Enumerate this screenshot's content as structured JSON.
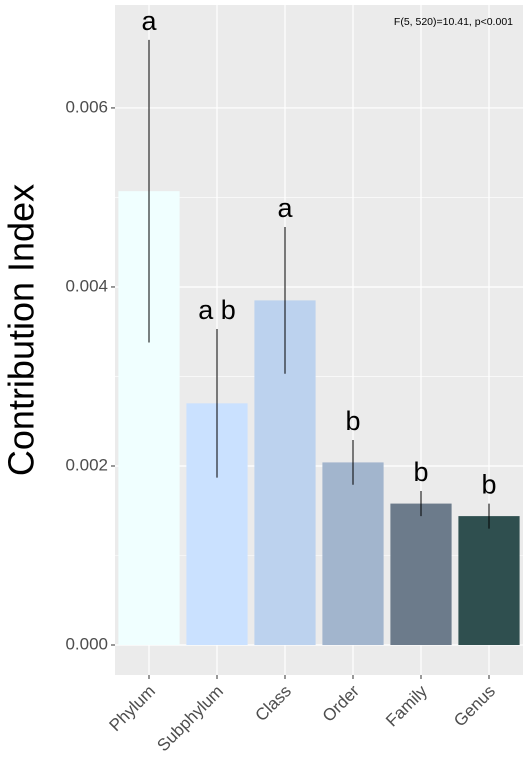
{
  "chart_data": {
    "type": "bar",
    "y_label": "Contribution Index",
    "annotation": "F(5, 520)=10.41, p<0.001",
    "categories": [
      "Phylum",
      "Subphylum",
      "Class",
      "Order",
      "Family",
      "Genus"
    ],
    "values": [
      0.00507,
      0.0027,
      0.00385,
      0.00204,
      0.00158,
      0.00144
    ],
    "errors": [
      0.00169,
      0.00083,
      0.00082,
      0.00025,
      0.00014,
      0.00014
    ],
    "group_letters": [
      "a",
      "a b",
      "a",
      "b",
      "b",
      "b"
    ],
    "colors": [
      "#f0ffff",
      "#cae1ff",
      "#bcd2ee",
      "#a2b5cd",
      "#6c7b8b",
      "#2f4f4f"
    ],
    "ylim": [
      -0.000335,
      0.00715
    ],
    "yticks": [
      {
        "value": 0,
        "label": "0.000"
      },
      {
        "value": 0.002,
        "label": "0.002"
      },
      {
        "value": 0.004,
        "label": "0.004"
      },
      {
        "value": 0.006,
        "label": "0.006"
      }
    ],
    "grid": true
  }
}
